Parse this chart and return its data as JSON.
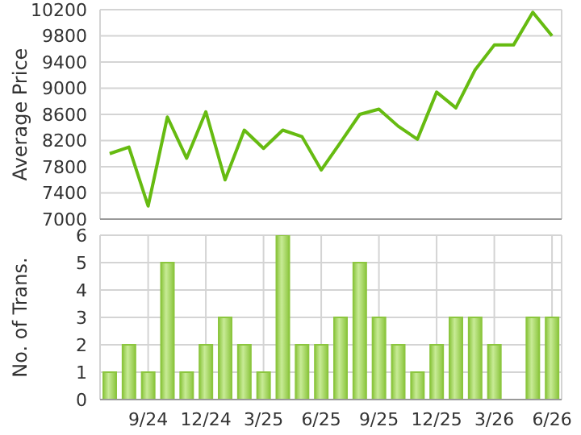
{
  "chart_data": [
    {
      "type": "line",
      "ylabel": "Average Price",
      "categories": [
        null,
        null,
        null,
        null,
        null,
        null,
        null,
        null,
        null,
        null,
        null,
        null,
        null,
        null,
        null,
        null,
        null,
        null,
        null,
        null,
        null,
        null,
        null,
        null
      ],
      "series": [
        {
          "color": "#66bb11",
          "values": [
            8000,
            8100,
            7200,
            8560,
            7930,
            8640,
            7600,
            8360,
            8080,
            8360,
            8260,
            7750,
            8170,
            8600,
            8680,
            8420,
            8220,
            8940,
            8700,
            9280,
            9660,
            9660,
            10160,
            9800
          ]
        }
      ],
      "ylim": [
        7000,
        10200
      ],
      "yticks": [
        7000,
        7400,
        7800,
        8200,
        8600,
        9000,
        9400,
        9800,
        10200
      ],
      "grid": true,
      "tick_labels": "y",
      "marker": "none"
    },
    {
      "type": "bar",
      "ylabel": "No. of Trans.",
      "categories": [
        null,
        null,
        "9/24",
        null,
        null,
        "12/24",
        null,
        null,
        "3/25",
        null,
        null,
        "6/25",
        null,
        null,
        "9/25",
        null,
        null,
        "12/25",
        null,
        null,
        "3/26",
        null,
        null,
        "6/26"
      ],
      "series": [
        {
          "color": "#8cc63f",
          "values": [
            1,
            2,
            1,
            5,
            1,
            2,
            3,
            2,
            1,
            6,
            2,
            2,
            3,
            5,
            3,
            2,
            1,
            2,
            3,
            3,
            2,
            0,
            3,
            3
          ]
        }
      ],
      "ylim": [
        0,
        6
      ],
      "yticks": [
        0,
        1,
        2,
        3,
        4,
        5,
        6
      ],
      "grid": true
    }
  ]
}
